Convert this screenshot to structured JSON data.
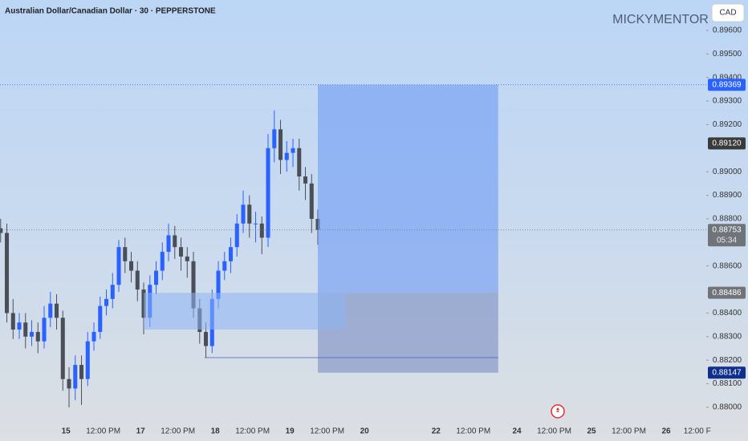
{
  "title": "Australian Dollar/Canadian Dollar · 30 · PEPPERSTONE",
  "watermark": "MICKYMENTOR",
  "currency_button": "CAD",
  "chart_data": {
    "type": "candlestick",
    "up_color": "#2962ff",
    "down_color": "#4a4f57",
    "x": [
      -21,
      -19,
      -17,
      -15,
      -13,
      -11,
      -9,
      -7,
      -5,
      -3,
      -1,
      1,
      3,
      5,
      7,
      9,
      11,
      13,
      15,
      17,
      19,
      21,
      23,
      25,
      27,
      29,
      31,
      33,
      35,
      37,
      39,
      41,
      43,
      45,
      47,
      49,
      51,
      53,
      55,
      57,
      59,
      61,
      63,
      65,
      67,
      69,
      71,
      73,
      75,
      77,
      79,
      81
    ],
    "open": [
      0.8876,
      0.8874,
      0.884,
      0.8833,
      0.8836,
      0.883,
      0.8832,
      0.8828,
      0.8838,
      0.8844,
      0.8838,
      0.8812,
      0.8808,
      0.8818,
      0.8812,
      0.8828,
      0.8832,
      0.8843,
      0.8846,
      0.8852,
      0.8868,
      0.8862,
      0.8858,
      0.885,
      0.8838,
      0.8852,
      0.8858,
      0.8866,
      0.8873,
      0.8868,
      0.8864,
      0.8862,
      0.8842,
      0.8832,
      0.8826,
      0.8846,
      0.8858,
      0.8862,
      0.8868,
      0.8878,
      0.8886,
      0.8878,
      0.8878,
      0.8872,
      0.891,
      0.8918,
      0.8905,
      0.8908,
      0.891,
      0.8898,
      0.8895,
      0.888
    ],
    "high": [
      0.888,
      0.8878,
      0.8846,
      0.884,
      0.884,
      0.8837,
      0.8836,
      0.8843,
      0.8849,
      0.8848,
      0.8841,
      0.8817,
      0.8822,
      0.8822,
      0.8832,
      0.8836,
      0.8847,
      0.885,
      0.8857,
      0.8871,
      0.8872,
      0.8866,
      0.8862,
      0.8853,
      0.8856,
      0.8862,
      0.887,
      0.8878,
      0.8877,
      0.8872,
      0.8868,
      0.8866,
      0.8846,
      0.8836,
      0.885,
      0.8862,
      0.8866,
      0.8872,
      0.8882,
      0.8892,
      0.889,
      0.8883,
      0.8881,
      0.8916,
      0.8926,
      0.8922,
      0.8913,
      0.8914,
      0.8914,
      0.8902,
      0.8899,
      0.8884
    ],
    "low": [
      0.887,
      0.8836,
      0.8829,
      0.8829,
      0.8825,
      0.8826,
      0.8823,
      0.8825,
      0.8834,
      0.8833,
      0.8807,
      0.88,
      0.8803,
      0.8801,
      0.8809,
      0.8824,
      0.8829,
      0.8839,
      0.8842,
      0.8849,
      0.8857,
      0.8853,
      0.8845,
      0.8831,
      0.8834,
      0.8848,
      0.8854,
      0.8862,
      0.8863,
      0.8858,
      0.8855,
      0.8838,
      0.8827,
      0.8821,
      0.8823,
      0.8842,
      0.8854,
      0.8857,
      0.8864,
      0.8874,
      0.8872,
      0.887,
      0.8865,
      0.8868,
      0.8904,
      0.8899,
      0.89,
      0.8902,
      0.8892,
      0.8888,
      0.8874,
      0.8869
    ],
    "close": [
      0.8874,
      0.884,
      0.8833,
      0.8836,
      0.883,
      0.8832,
      0.8828,
      0.8838,
      0.8844,
      0.8838,
      0.8812,
      0.8808,
      0.8818,
      0.8812,
      0.8828,
      0.8832,
      0.8843,
      0.8846,
      0.8852,
      0.8868,
      0.8862,
      0.8858,
      0.885,
      0.8838,
      0.8852,
      0.8858,
      0.8866,
      0.8873,
      0.8868,
      0.8864,
      0.8862,
      0.8842,
      0.8832,
      0.8826,
      0.8846,
      0.8858,
      0.8862,
      0.8868,
      0.8878,
      0.8886,
      0.8878,
      0.8878,
      0.8872,
      0.891,
      0.8918,
      0.8905,
      0.8908,
      0.891,
      0.8898,
      0.8895,
      0.888,
      0.88753
    ],
    "xlim": [
      -21.2,
      205.9
    ],
    "ylim": [
      0.87925,
      0.89729
    ],
    "xticks": [
      {
        "value": 0,
        "label": "15"
      },
      {
        "value": 12,
        "label": "12:00 PM"
      },
      {
        "value": 24,
        "label": "17"
      },
      {
        "value": 36,
        "label": "12:00 PM"
      },
      {
        "value": 48,
        "label": "18"
      },
      {
        "value": 60,
        "label": "12:00 PM"
      },
      {
        "value": 72,
        "label": "19"
      },
      {
        "value": 84,
        "label": "12:00 PM"
      },
      {
        "value": 96,
        "label": "20"
      },
      {
        "value": 119,
        "label": "22"
      },
      {
        "value": 131,
        "label": "12:00 PM"
      },
      {
        "value": 145,
        "label": "24"
      },
      {
        "value": 157,
        "label": "12:00 PM"
      },
      {
        "value": 169,
        "label": "25"
      },
      {
        "value": 181,
        "label": "12:00 PM"
      },
      {
        "value": 193,
        "label": "26"
      },
      {
        "value": 203,
        "label": "12:00 F"
      }
    ],
    "yticks": [
      {
        "value": 0.896,
        "label": "0.89600"
      },
      {
        "value": 0.895,
        "label": "0.89500"
      },
      {
        "value": 0.894,
        "label": "0.89400"
      },
      {
        "value": 0.893,
        "label": "0.89300"
      },
      {
        "value": 0.892,
        "label": "0.89200"
      },
      {
        "value": 0.89,
        "label": "0.89000"
      },
      {
        "value": 0.889,
        "label": "0.88900"
      },
      {
        "value": 0.888,
        "label": "0.88800"
      },
      {
        "value": 0.886,
        "label": "0.88600"
      },
      {
        "value": 0.884,
        "label": "0.88400"
      },
      {
        "value": 0.883,
        "label": "0.88300"
      },
      {
        "value": 0.882,
        "label": "0.88200"
      },
      {
        "value": 0.881,
        "label": "0.88100"
      },
      {
        "value": 0.88,
        "label": "0.88000"
      }
    ],
    "zones": [
      {
        "x": [
          81,
          139
        ],
        "y": [
          0.88486,
          0.89369
        ],
        "color": "rgba(110,155,245,0.6)"
      },
      {
        "x": [
          81,
          139
        ],
        "y": [
          0.88147,
          0.88486
        ],
        "color": "rgba(105,125,185,0.5)"
      },
      {
        "x": [
          25,
          90
        ],
        "y": [
          0.8833,
          0.88486
        ],
        "color": "rgba(140,180,245,0.55)"
      }
    ],
    "lines": [
      {
        "x": [
          44.6,
          139
        ],
        "value": 0.88211,
        "color": "#3d5fb8"
      }
    ],
    "levels": [
      {
        "value": 0.89369,
        "label": "0.89369",
        "color": "#2962ff",
        "line": true
      },
      {
        "value": 0.8912,
        "label": "0.89120",
        "color": "#3a3a3a",
        "line": false
      },
      {
        "value": 0.88753,
        "label": "0.88753",
        "color": "#6f747b",
        "line": true,
        "countdown": "05:34"
      },
      {
        "value": 0.88486,
        "label": "0.88486",
        "color": "#707479",
        "line": false
      },
      {
        "value": 0.88147,
        "label": "0.88147",
        "color": "#0f2f8c",
        "line": false
      }
    ]
  }
}
